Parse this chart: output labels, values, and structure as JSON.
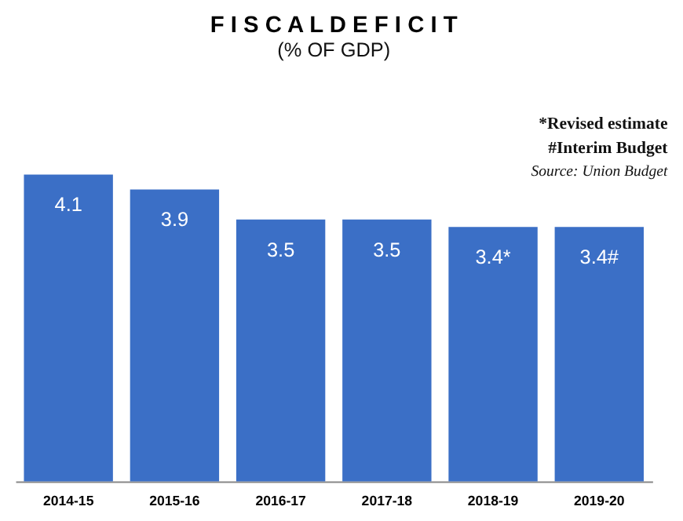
{
  "chart_data": {
    "type": "bar",
    "title": "F I S C A L   D E F I C I T",
    "subtitle": "(% OF GDP)",
    "categories": [
      "2014-15",
      "2015-16",
      "2016-17",
      "2017-18",
      "2018-19",
      "2019-20"
    ],
    "values": [
      4.1,
      3.9,
      3.5,
      3.5,
      3.4,
      3.4
    ],
    "value_labels": [
      "4.1",
      "3.9",
      "3.5",
      "3.5",
      "3.4*",
      "3.4#"
    ],
    "color": "#3b6fc6",
    "grid": false,
    "annotations": [
      "*Revised estimate",
      "#Interim Budget",
      "Source: Union Budget"
    ]
  }
}
